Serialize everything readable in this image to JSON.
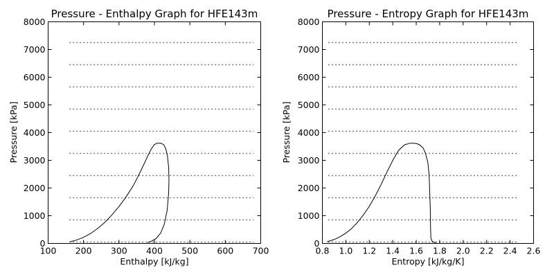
{
  "chart_data": [
    {
      "type": "line",
      "title": "Pressure - Enthalpy Graph for HFE143m",
      "xlabel": "Enthalpy [kJ/kg]",
      "ylabel": "Pressure [kPa]",
      "xlim": [
        100,
        700
      ],
      "ylim": [
        0,
        8000
      ],
      "xticks": [
        100,
        200,
        300,
        400,
        500,
        600,
        700
      ],
      "yticks": [
        0,
        1000,
        2000,
        3000,
        4000,
        5000,
        6000,
        7000,
        8000
      ],
      "xtick_labels": [
        "100",
        "200",
        "300",
        "400",
        "500",
        "600",
        "700"
      ],
      "ytick_labels": [
        "0",
        "1000",
        "2000",
        "3000",
        "4000",
        "5000",
        "6000",
        "7000",
        "8000"
      ],
      "grid": false,
      "isobars": {
        "style": "dotted",
        "color": "#7a7a7a",
        "x_range": [
          160,
          680
        ],
        "pressures": [
          50,
          850,
          1650,
          2450,
          3250,
          4050,
          4850,
          5650,
          6450,
          7250
        ]
      },
      "series": [
        {
          "values": [
            [
              162,
              60
            ],
            [
              180,
              120
            ],
            [
              200,
              220
            ],
            [
              220,
              360
            ],
            [
              240,
              540
            ],
            [
              260,
              760
            ],
            [
              280,
              1030
            ],
            [
              300,
              1330
            ],
            [
              320,
              1680
            ],
            [
              340,
              2080
            ],
            [
              355,
              2450
            ],
            [
              370,
              2850
            ],
            [
              382,
              3180
            ],
            [
              392,
              3430
            ],
            [
              400,
              3570
            ],
            [
              408,
              3620
            ],
            [
              418,
              3615
            ],
            [
              426,
              3570
            ],
            [
              432,
              3420
            ],
            [
              437,
              3130
            ],
            [
              440,
              2750
            ],
            [
              441,
              2300
            ],
            [
              440,
              1800
            ],
            [
              436,
              1200
            ],
            [
              428,
              700
            ],
            [
              418,
              380
            ],
            [
              405,
              180
            ],
            [
              390,
              70
            ],
            [
              380,
              30
            ]
          ]
        }
      ]
    },
    {
      "type": "line",
      "title": "Pressure - Entropy Graph for HFE143m",
      "xlabel": "Entropy [kJ/kg/K]",
      "ylabel": "Pressure [kPa]",
      "xlim": [
        0.8,
        2.6
      ],
      "ylim": [
        0,
        8000
      ],
      "xticks": [
        0.8,
        1.0,
        1.2,
        1.4,
        1.6,
        1.8,
        2.0,
        2.2,
        2.4,
        2.6
      ],
      "yticks": [
        0,
        1000,
        2000,
        3000,
        4000,
        5000,
        6000,
        7000,
        8000
      ],
      "xtick_labels": [
        "0.8",
        "1.0",
        "1.2",
        "1.4",
        "1.6",
        "1.8",
        "2.0",
        "2.2",
        "2.4",
        "2.6"
      ],
      "ytick_labels": [
        "0",
        "1000",
        "2000",
        "3000",
        "4000",
        "5000",
        "6000",
        "7000",
        "8000"
      ],
      "grid": false,
      "isobars": {
        "style": "dotted",
        "color": "#7a7a7a",
        "x_range": [
          0.85,
          2.46
        ],
        "pressures": [
          50,
          850,
          1650,
          2450,
          3250,
          4050,
          4850,
          5650,
          6450,
          7250
        ]
      },
      "series": [
        {
          "values": [
            [
              0.84,
              60
            ],
            [
              0.9,
              140
            ],
            [
              0.95,
              240
            ],
            [
              1.0,
              370
            ],
            [
              1.05,
              540
            ],
            [
              1.1,
              760
            ],
            [
              1.15,
              1030
            ],
            [
              1.2,
              1340
            ],
            [
              1.25,
              1710
            ],
            [
              1.3,
              2120
            ],
            [
              1.35,
              2570
            ],
            [
              1.4,
              3000
            ],
            [
              1.45,
              3360
            ],
            [
              1.5,
              3560
            ],
            [
              1.55,
              3620
            ],
            [
              1.6,
              3610
            ],
            [
              1.63,
              3560
            ],
            [
              1.66,
              3440
            ],
            [
              1.68,
              3240
            ],
            [
              1.7,
              2900
            ],
            [
              1.71,
              2450
            ],
            [
              1.715,
              1900
            ],
            [
              1.72,
              1200
            ],
            [
              1.722,
              600
            ],
            [
              1.725,
              200
            ],
            [
              1.735,
              80
            ],
            [
              1.75,
              40
            ],
            [
              1.77,
              30
            ]
          ]
        }
      ]
    }
  ]
}
